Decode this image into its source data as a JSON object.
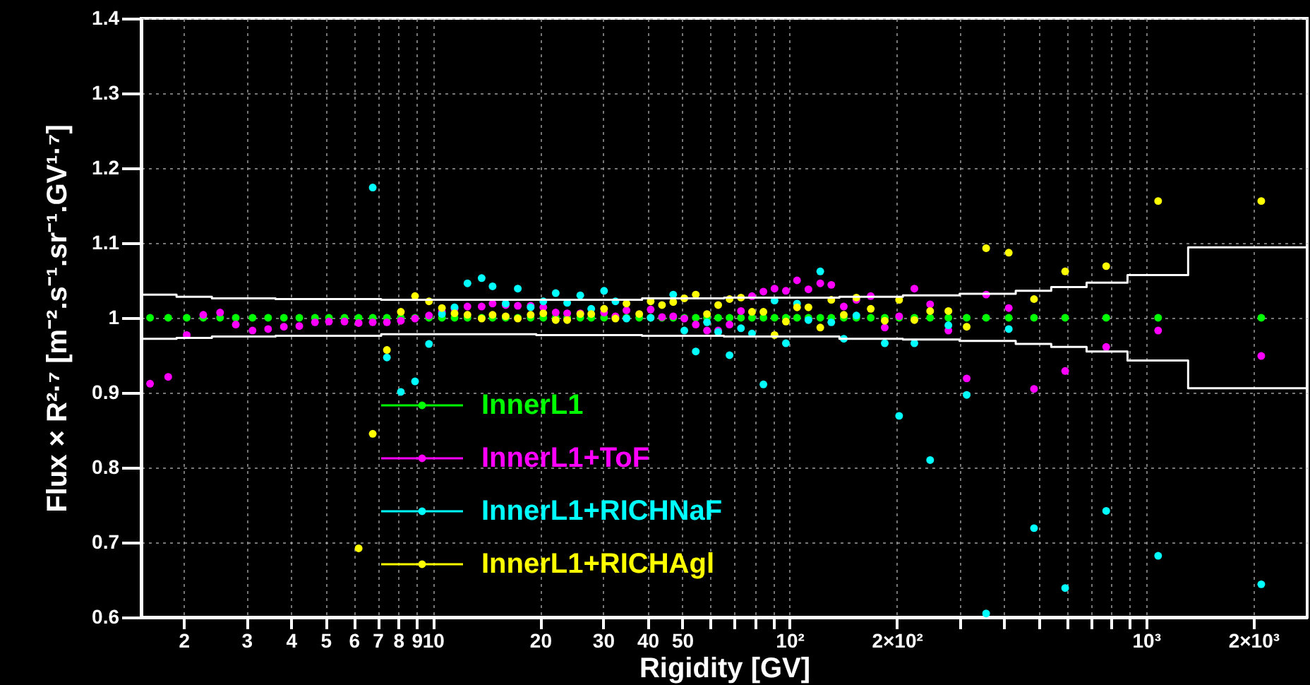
{
  "chart_data": {
    "type": "scatter",
    "xlabel": "Rigidity [GV]",
    "ylabel": "Flux × R²·⁷ [m⁻².s⁻¹.sr⁻¹.GV¹·⁷]",
    "log": "x",
    "grid": true,
    "marker": "circle",
    "legend": "bottom left",
    "xlim": [
      1.52,
      2830
    ],
    "ylim": [
      0.6,
      1.4
    ],
    "xticks": [
      2,
      3,
      4,
      5,
      6,
      7,
      8,
      {
        "value": 9,
        "label": "9"
      },
      10,
      20,
      30,
      40,
      50,
      {
        "value": 60,
        "label": null
      },
      {
        "value": 70,
        "label": null
      },
      {
        "value": 80,
        "label": null
      },
      {
        "value": 90,
        "label": null
      },
      {
        "value": 100,
        "label": "10²"
      },
      {
        "value": 200,
        "label": "2×10²"
      },
      {
        "value": 300,
        "label": null
      },
      {
        "value": 400,
        "label": null
      },
      {
        "value": 500,
        "label": null
      },
      {
        "value": 600,
        "label": null
      },
      {
        "value": 700,
        "label": null
      },
      {
        "value": 800,
        "label": null
      },
      {
        "value": 900,
        "label": null
      },
      {
        "value": 1000,
        "label": "10³"
      },
      {
        "value": 2000,
        "label": "2×10³"
      }
    ],
    "yticks": [
      0.6,
      0.7,
      0.8,
      0.9,
      1,
      1.1,
      1.2,
      1.3,
      1.4
    ],
    "x": [
      1.61,
      1.81,
      2.04,
      2.27,
      2.53,
      2.8,
      3.12,
      3.45,
      3.82,
      4.22,
      4.67,
      5.11,
      5.65,
      6.19,
      6.78,
      7.43,
      8.13,
      8.91,
      9.75,
      10.6,
      11.5,
      12.5,
      13.7,
      14.7,
      16.0,
      17.3,
      18.8,
      20.4,
      22.1,
      23.8,
      25.9,
      27.8,
      30.2,
      32.5,
      34.9,
      37.9,
      40.8,
      43.9,
      47.2,
      50.7,
      54.6,
      58.7,
      63.1,
      67.9,
      73.1,
      78.5,
      84.5,
      90.8,
      97.7,
      105,
      113,
      122,
      131,
      142,
      154,
      169,
      185,
      203,
      224,
      248,
      279,
      314,
      356,
      412,
      485,
      593,
      773,
      1081,
      2104
    ],
    "series": [
      {
        "name": "InnerL1",
        "color": "#00ff00",
        "values": [
          1,
          1,
          1,
          1,
          1,
          1,
          1,
          1,
          1,
          1,
          1,
          1,
          1,
          1,
          1,
          1,
          1,
          1,
          1,
          1,
          1,
          1,
          1,
          1,
          1,
          1,
          1,
          1,
          1,
          1,
          1,
          1,
          1,
          1,
          1,
          1,
          1,
          1,
          1,
          1,
          1,
          1,
          1,
          1,
          1,
          1,
          1,
          1,
          1,
          1,
          1,
          1,
          1,
          1,
          1,
          1,
          1,
          1,
          1,
          1,
          1,
          1,
          1,
          1,
          1,
          1,
          1,
          1,
          1
        ]
      },
      {
        "name": "InnerL1+ToF",
        "color": "#ff00ff",
        "values": [
          0.912,
          0.921,
          0.977,
          1.004,
          1.007,
          0.991,
          0.983,
          0.985,
          0.988,
          0.989,
          0.994,
          0.995,
          0.995,
          0.993,
          0.994,
          0.994,
          0.996,
          0.999,
          1.003,
          1.008,
          1.012,
          1.015,
          1.015,
          1.019,
          1.017,
          1.016,
          1.016,
          1.014,
          1.007,
          1.006,
          1.006,
          null,
          1.007,
          1.002,
          1.01,
          null,
          1.011,
          1.001,
          1.002,
          0.999,
          0.991,
          0.983,
          0.983,
          0.991,
          1.009,
          1.029,
          1.035,
          1.039,
          1.036,
          1.05,
          1.038,
          1.046,
          1.044,
          1.015,
          1.024,
          1.029,
          0.987,
          1.002,
          1.039,
          1.018,
          0.983,
          0.919,
          1.031,
          1.013,
          0.905,
          0.929,
          0.961,
          0.983,
          0.949
        ]
      },
      {
        "name": "InnerL1+RICHNaF",
        "color": "#00ffff",
        "values": [
          null,
          null,
          null,
          null,
          null,
          null,
          null,
          null,
          null,
          null,
          null,
          null,
          null,
          null,
          1.174,
          0.947,
          0.901,
          0.915,
          0.965,
          1.005,
          1.014,
          1.046,
          1.053,
          1.042,
          1.019,
          1.039,
          1.014,
          1.022,
          1.033,
          1.02,
          1.03,
          1.012,
          1.036,
          1.022,
          0.999,
          null,
          1.0,
          null,
          1.031,
          0.983,
          0.955,
          0.994,
          0.981,
          0.95,
          0.986,
          0.979,
          0.911,
          1.023,
          0.966,
          1.019,
          0.997,
          1.062,
          0.994,
          0.972,
          1.003,
          null,
          0.966,
          0.869,
          0.966,
          0.81,
          0.99,
          0.897,
          0.605,
          0.985,
          0.719,
          0.639,
          0.742,
          0.682,
          0.644
        ]
      },
      {
        "name": "InnerL1+RICHAgl",
        "color": "#ffff00",
        "values": [
          null,
          null,
          null,
          null,
          null,
          null,
          null,
          null,
          null,
          null,
          null,
          null,
          null,
          0.692,
          0.845,
          0.957,
          1.008,
          1.029,
          1.022,
          1.013,
          1.006,
          1.004,
          0.999,
          1.004,
          1.002,
          0.999,
          1.004,
          1.006,
          0.997,
          0.997,
          1.005,
          1.005,
          1.012,
          0.999,
          1.019,
          1.005,
          1.022,
          1.017,
          1.021,
          1.026,
          1.031,
          1.005,
          1.017,
          1.025,
          1.027,
          1.008,
          1.008,
          0.977,
          0.995,
          1.014,
          1.014,
          0.987,
          1.024,
          1.004,
          1.027,
          1.012,
          0.996,
          1.024,
          0.997,
          1.009,
          1.009,
          0.988,
          1.093,
          1.087,
          1.025,
          1.062,
          1.069,
          1.156,
          1.156
        ]
      },
      {
        "type": "step",
        "marker": "none",
        "color": "#ffffff",
        "x": [
          1.52,
          1.91,
          2.4,
          3.62,
          7.16,
          19.5,
          38.6,
          65.5,
          138,
          208,
          300,
          431,
          542,
          681,
          887,
          1312,
          2825
        ],
        "values": [
          1.031,
          1.028,
          1.026,
          1.025,
          1.024,
          1.024,
          1.026,
          1.027,
          1.028,
          1.03,
          1.032,
          1.036,
          1.041,
          1.047,
          1.057,
          1.094,
          1.094
        ]
      },
      {
        "type": "step",
        "marker": "none",
        "color": "#ffffff",
        "x": [
          1.52,
          1.91,
          2.4,
          3.62,
          7.16,
          19.5,
          38.6,
          65.5,
          138,
          208,
          300,
          431,
          542,
          681,
          887,
          1312,
          2825
        ],
        "values": [
          0.972,
          0.973,
          0.975,
          0.976,
          0.978,
          0.977,
          0.976,
          0.975,
          0.972,
          0.971,
          0.969,
          0.965,
          0.961,
          0.955,
          0.943,
          0.906,
          0.906
        ]
      }
    ]
  }
}
